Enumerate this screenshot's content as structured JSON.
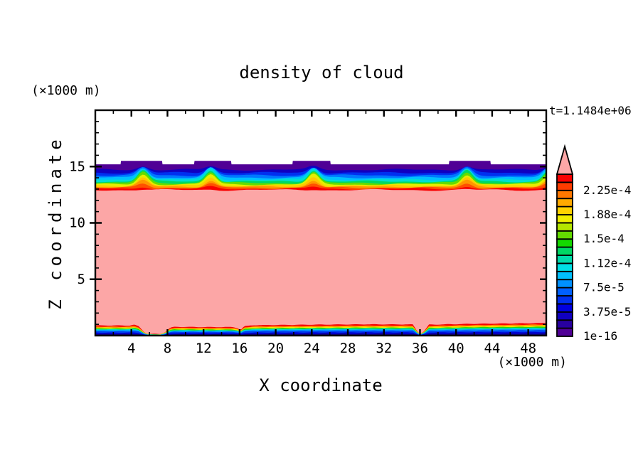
{
  "chart_data": {
    "type": "filled_contour",
    "title": "density of cloud",
    "time_label": "t=1.1484e+06",
    "background": "#ffffff",
    "axes": {
      "x": {
        "label": "X coordinate",
        "unit": "(×1000 m)",
        "range": [
          0,
          50
        ],
        "major_ticks": [
          4,
          8,
          12,
          16,
          20,
          24,
          28,
          32,
          36,
          40,
          44,
          48
        ],
        "minor_step": 2
      },
      "z": {
        "label": "Z coordinate",
        "unit": "(×1000 m)",
        "range": [
          0,
          20
        ],
        "major_ticks": [
          5,
          10,
          15
        ],
        "minor_step": 1
      }
    },
    "colorbar": {
      "orientation": "vertical",
      "overflow_color": "#fca6a6",
      "cell_colors_bottom_to_top": [
        "#500096",
        "#2800a0",
        "#1000c0",
        "#0000e0",
        "#0030f0",
        "#0060ff",
        "#0090ff",
        "#00c0ff",
        "#00e0e6",
        "#00dcaa",
        "#00d864",
        "#14d800",
        "#64dc00",
        "#b4e600",
        "#f0ee00",
        "#ffd200",
        "#ffaa00",
        "#ff7800",
        "#ff3c00",
        "#f80000"
      ],
      "labels": [
        {
          "text": "2.25e-4",
          "boundary": 18
        },
        {
          "text": "1.88e-4",
          "boundary": 15
        },
        {
          "text": "1.5e-4",
          "boundary": 12
        },
        {
          "text": "1.12e-4",
          "boundary": 9
        },
        {
          "text": "7.5e-5",
          "boundary": 6
        },
        {
          "text": "3.75e-5",
          "boundary": 3
        },
        {
          "text": "1e-16",
          "boundary": 0
        }
      ]
    },
    "field": {
      "interior_color": "#fca6a6",
      "cloud_top": {
        "top_edge": {
          "base_z": 15.2,
          "plateau_z": 15.5,
          "plateaus": [
            [
              2.8,
              7.4
            ],
            [
              11.0,
              15.1
            ],
            [
              21.9,
              26.1
            ],
            [
              39.2,
              43.8
            ]
          ]
        },
        "bump_centers_x": [
          5.3,
          12.8,
          24.2,
          41.2,
          50.3
        ],
        "bump_sigma": 0.6,
        "stripes": [
          {
            "color": "#500096",
            "step": true
          },
          {
            "color": "#1000c0",
            "base": 14.72,
            "amp": 0.3
          },
          {
            "color": "#0030f0",
            "base": 14.45,
            "amp": 0.5
          },
          {
            "color": "#0078ff",
            "base": 14.22,
            "amp": 0.68
          },
          {
            "color": "#00c0ff",
            "base": 14.02,
            "amp": 0.85
          },
          {
            "color": "#00e0d2",
            "base": 13.84,
            "amp": 0.95
          },
          {
            "color": "#00d864",
            "base": 13.68,
            "amp": 1.0
          },
          {
            "color": "#64dc00",
            "base": 13.54,
            "amp": 0.97
          },
          {
            "color": "#e6ee00",
            "base": 13.42,
            "amp": 0.88
          },
          {
            "color": "#ffc800",
            "base": 13.31,
            "amp": 0.74
          },
          {
            "color": "#ff9600",
            "base": 13.21,
            "amp": 0.56
          },
          {
            "color": "#ff5000",
            "base": 13.12,
            "amp": 0.36
          },
          {
            "color": "#f80000",
            "base": 13.03,
            "amp": 0.18
          },
          {
            "color": "#fca6a6",
            "base": 12.92,
            "amp": 0.05
          }
        ]
      },
      "surface_layer": {
        "stripes": [
          {
            "color": "#f80000",
            "h": 0.97
          },
          {
            "color": "#ff8c00",
            "h": 0.86
          },
          {
            "color": "#ffe600",
            "h": 0.77
          },
          {
            "color": "#28d800",
            "h": 0.69
          },
          {
            "color": "#00dcc8",
            "h": 0.61
          },
          {
            "color": "#0098ff",
            "h": 0.52
          },
          {
            "color": "#0040f0",
            "h": 0.42
          },
          {
            "color": "#0000d2",
            "h": 0.28
          },
          {
            "color": "#100078",
            "h": 0.15
          }
        ],
        "envelope": [
          [
            0,
            0.93
          ],
          [
            3.8,
            0.92
          ],
          [
            4.3,
            1.0
          ],
          [
            4.8,
            0.85
          ],
          [
            5.4,
            0.35
          ],
          [
            5.8,
            0.16
          ],
          [
            7.2,
            0.14
          ],
          [
            7.7,
            0.3
          ],
          [
            8.3,
            0.72
          ],
          [
            8.8,
            0.8
          ],
          [
            12.0,
            0.78
          ],
          [
            15.3,
            0.78
          ],
          [
            15.8,
            0.68
          ],
          [
            16.1,
            0.5
          ],
          [
            16.5,
            0.85
          ],
          [
            17.5,
            0.95
          ],
          [
            24.0,
            1.0
          ],
          [
            30.0,
            1.03
          ],
          [
            35.2,
            1.02
          ],
          [
            35.7,
            0.4
          ],
          [
            36.05,
            0.15
          ],
          [
            36.5,
            0.45
          ],
          [
            37.0,
            1.0
          ],
          [
            42.0,
            1.08
          ],
          [
            47.0,
            1.12
          ],
          [
            50.0,
            1.15
          ]
        ]
      }
    }
  }
}
